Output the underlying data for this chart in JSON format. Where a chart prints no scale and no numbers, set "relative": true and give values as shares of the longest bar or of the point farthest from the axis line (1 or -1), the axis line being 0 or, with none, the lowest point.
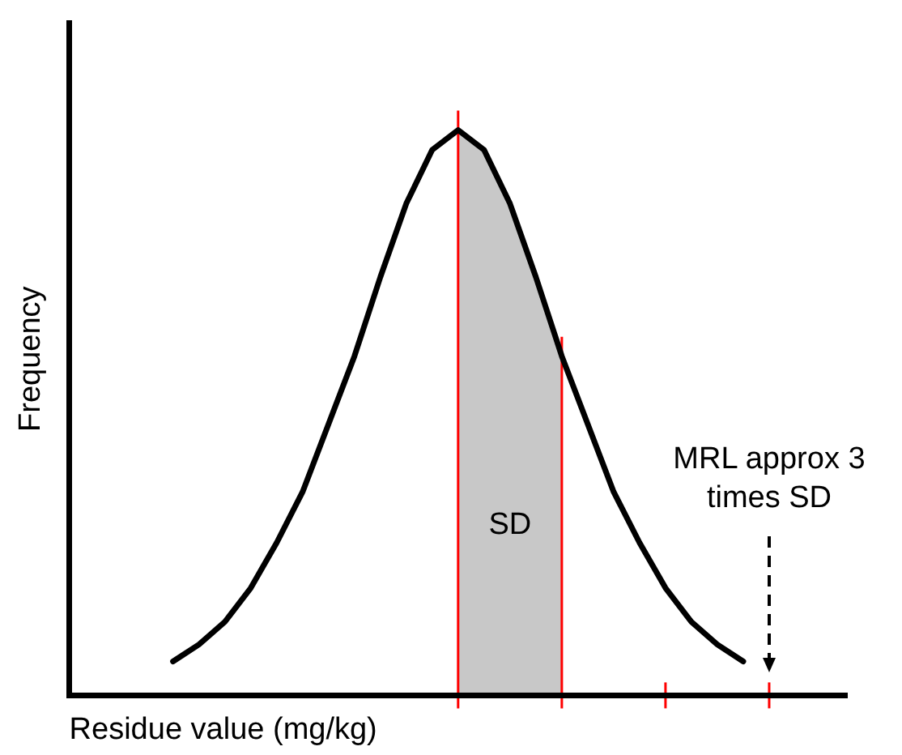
{
  "chart_data": {
    "type": "line",
    "relative": true,
    "xlabel": "Residue value (mg/kg)",
    "ylabel": "Frequency",
    "categories": [
      null,
      null,
      null,
      null,
      null,
      null,
      null,
      null,
      null,
      null,
      null,
      null,
      null,
      null,
      null,
      null,
      null,
      null,
      null,
      null,
      null,
      null,
      null,
      null,
      null,
      null,
      null,
      null,
      null,
      null,
      null
    ],
    "series": [
      {
        "color": "#000000",
        "values": [
          null,
          null,
          null,
          null,
          0.06,
          0.09,
          0.13,
          0.19,
          0.27,
          0.36,
          0.48,
          0.6,
          0.74,
          0.87,
          0.965,
          1,
          0.965,
          0.87,
          0.74,
          0.6,
          0.48,
          0.36,
          0.27,
          0.19,
          0.13,
          0.09,
          0.06,
          null,
          null,
          null,
          null
        ]
      }
    ],
    "tick_labels": false,
    "grid": false,
    "legend": false,
    "marker": "none",
    "line_style": "solid",
    "annotations": [
      "SD",
      "MRL approx 3 times SD"
    ]
  }
}
